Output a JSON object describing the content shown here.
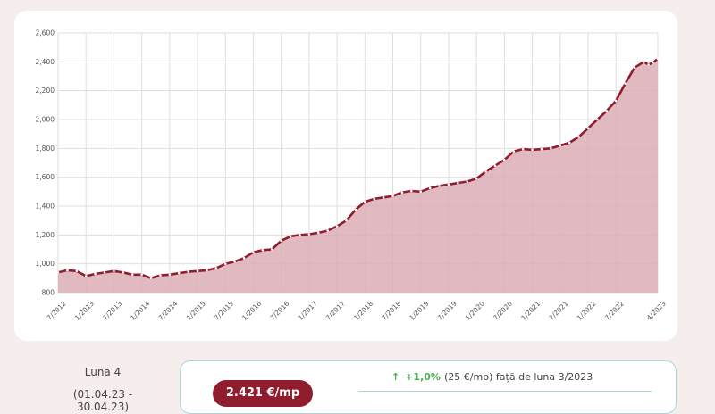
{
  "chart_data": {
    "type": "area",
    "x_tick_labels": [
      "7/2012",
      "1/2013",
      "7/2013",
      "1/2014",
      "7/2014",
      "1/2015",
      "7/2015",
      "1/2016",
      "7/2016",
      "1/2017",
      "7/2017",
      "1/2018",
      "7/2018",
      "1/2019",
      "7/2019",
      "1/2020",
      "7/2020",
      "1/2021",
      "7/2021",
      "1/2022",
      "7/2022",
      "4/2023"
    ],
    "y_tick_labels": [
      "800",
      "1,000",
      "1,200",
      "1,400",
      "1,600",
      "1,800",
      "2,000",
      "2,200",
      "2,400",
      "2,600"
    ],
    "ylim": [
      800,
      2600
    ],
    "grid": true,
    "x_range": [
      "7/2012",
      "4/2023"
    ],
    "points": [
      [
        "7/2012",
        940
      ],
      [
        "9/2012",
        955
      ],
      [
        "11/2012",
        950
      ],
      [
        "1/2013",
        915
      ],
      [
        "3/2013",
        930
      ],
      [
        "5/2013",
        940
      ],
      [
        "7/2013",
        950
      ],
      [
        "9/2013",
        940
      ],
      [
        "11/2013",
        925
      ],
      [
        "1/2014",
        925
      ],
      [
        "3/2014",
        900
      ],
      [
        "5/2014",
        920
      ],
      [
        "7/2014",
        925
      ],
      [
        "9/2014",
        935
      ],
      [
        "11/2014",
        945
      ],
      [
        "1/2015",
        950
      ],
      [
        "3/2015",
        955
      ],
      [
        "5/2015",
        970
      ],
      [
        "7/2015",
        1000
      ],
      [
        "9/2015",
        1015
      ],
      [
        "11/2015",
        1040
      ],
      [
        "1/2016",
        1080
      ],
      [
        "3/2016",
        1095
      ],
      [
        "5/2016",
        1100
      ],
      [
        "7/2016",
        1160
      ],
      [
        "9/2016",
        1190
      ],
      [
        "11/2016",
        1200
      ],
      [
        "1/2017",
        1205
      ],
      [
        "3/2017",
        1215
      ],
      [
        "5/2017",
        1230
      ],
      [
        "7/2017",
        1260
      ],
      [
        "9/2017",
        1300
      ],
      [
        "11/2017",
        1375
      ],
      [
        "1/2018",
        1430
      ],
      [
        "3/2018",
        1450
      ],
      [
        "5/2018",
        1460
      ],
      [
        "7/2018",
        1470
      ],
      [
        "9/2018",
        1495
      ],
      [
        "11/2018",
        1505
      ],
      [
        "1/2019",
        1500
      ],
      [
        "3/2019",
        1525
      ],
      [
        "5/2019",
        1540
      ],
      [
        "7/2019",
        1550
      ],
      [
        "9/2019",
        1560
      ],
      [
        "11/2019",
        1570
      ],
      [
        "1/2020",
        1590
      ],
      [
        "3/2020",
        1640
      ],
      [
        "5/2020",
        1680
      ],
      [
        "7/2020",
        1720
      ],
      [
        "9/2020",
        1780
      ],
      [
        "11/2020",
        1795
      ],
      [
        "1/2021",
        1790
      ],
      [
        "3/2021",
        1795
      ],
      [
        "5/2021",
        1800
      ],
      [
        "7/2021",
        1820
      ],
      [
        "9/2021",
        1840
      ],
      [
        "11/2021",
        1880
      ],
      [
        "1/2022",
        1940
      ],
      [
        "3/2022",
        2000
      ],
      [
        "5/2022",
        2060
      ],
      [
        "7/2022",
        2130
      ],
      [
        "9/2022",
        2250
      ],
      [
        "11/2022",
        2360
      ],
      [
        "1/2023",
        2400
      ],
      [
        "2/2023",
        2380
      ],
      [
        "3/2023",
        2396
      ],
      [
        "4/2023",
        2421
      ]
    ],
    "colors": {
      "line": "#8f1d2e",
      "fill": "#dcaeb6",
      "marker": "#ffffff"
    }
  },
  "summary": {
    "month_label": "Luna 4",
    "range_label": "(01.04.23 - 30.04.23)",
    "price": "2.421 €/mp",
    "change_arrow": "↑",
    "change_pct": "+1,0%",
    "change_text": "(25 €/mp)  față de luna 3/2023"
  }
}
